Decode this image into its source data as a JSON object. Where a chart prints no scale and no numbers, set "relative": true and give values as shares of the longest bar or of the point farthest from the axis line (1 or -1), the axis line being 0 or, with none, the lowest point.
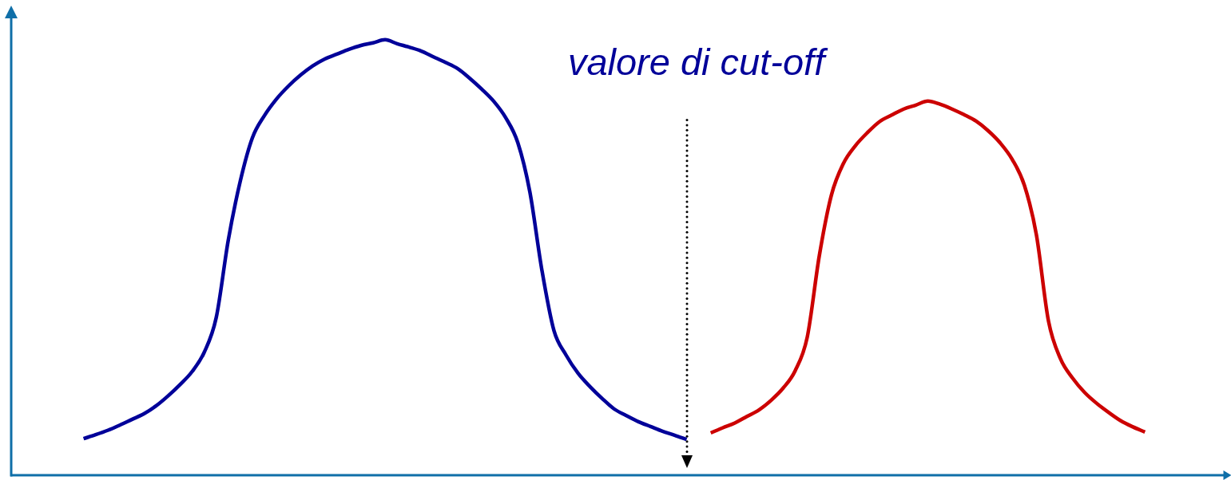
{
  "chart_data": {
    "type": "line",
    "relative": true,
    "categories": [
      null,
      null,
      null,
      null,
      null,
      null,
      null,
      null,
      null,
      null,
      null,
      null,
      null,
      null,
      null,
      null,
      null,
      null,
      null,
      null,
      null,
      null,
      null,
      null,
      null,
      null,
      null,
      null,
      null,
      null,
      null,
      null,
      null,
      null,
      null,
      null,
      null,
      null,
      null,
      null,
      null,
      null,
      null,
      null,
      null,
      null,
      null,
      null,
      null,
      null,
      null,
      null,
      null,
      null,
      null,
      null,
      null,
      null,
      null,
      null,
      null,
      null,
      null,
      null,
      null,
      null,
      null,
      null,
      null,
      null,
      null,
      null,
      null,
      null,
      null,
      null,
      null,
      null,
      null,
      null,
      null,
      null,
      null,
      null,
      null,
      null,
      null,
      null,
      null,
      null,
      null,
      null,
      null,
      null,
      null,
      null,
      null,
      null,
      null,
      null,
      null,
      null
    ],
    "series": [
      {
        "color": "#000099",
        "values": [
          null,
          null,
          null,
          null,
          null,
          null,
          0.084,
          0.093,
          0.103,
          0.115,
          0.128,
          0.141,
          0.159,
          0.182,
          0.208,
          0.238,
          0.282,
          0.362,
          0.54,
          0.676,
          0.775,
          0.826,
          0.864,
          0.894,
          0.919,
          0.94,
          0.956,
          0.967,
          0.978,
          0.987,
          0.993,
          1,
          0.991,
          0.983,
          0.974,
          0.961,
          0.948,
          0.934,
          0.912,
          0.887,
          0.859,
          0.821,
          0.764,
          0.651,
          0.471,
          0.332,
          0.276,
          0.234,
          0.203,
          0.176,
          0.152,
          0.137,
          0.123,
          0.112,
          0.101,
          0.092,
          0.082,
          null,
          null,
          null,
          null,
          null,
          null,
          null,
          null,
          null,
          null,
          null,
          null,
          null,
          null,
          null,
          null,
          null,
          null,
          null,
          null,
          null,
          null,
          null,
          null,
          null,
          null,
          null,
          null,
          null,
          null,
          null,
          null,
          null,
          null,
          null,
          null,
          null,
          null,
          null,
          null,
          null,
          null,
          null,
          null,
          null
        ]
      },
      {
        "color": "#cc0000",
        "values": [
          null,
          null,
          null,
          null,
          null,
          null,
          null,
          null,
          null,
          null,
          null,
          null,
          null,
          null,
          null,
          null,
          null,
          null,
          null,
          null,
          null,
          null,
          null,
          null,
          null,
          null,
          null,
          null,
          null,
          null,
          null,
          null,
          null,
          null,
          null,
          null,
          null,
          null,
          null,
          null,
          null,
          null,
          null,
          null,
          null,
          null,
          null,
          null,
          null,
          null,
          null,
          null,
          null,
          null,
          null,
          null,
          null,
          null,
          0.097,
          0.109,
          0.12,
          0.135,
          0.15,
          0.172,
          0.2,
          0.24,
          0.317,
          0.504,
          0.643,
          0.716,
          0.757,
          0.787,
          0.812,
          0.827,
          0.841,
          0.85,
          0.859,
          0.852,
          0.841,
          0.828,
          0.813,
          0.791,
          0.763,
          0.725,
          0.666,
          0.552,
          0.354,
          0.267,
          0.223,
          0.19,
          0.165,
          0.144,
          0.125,
          0.111,
          0.099,
          null,
          null,
          null,
          null,
          null,
          null,
          null
        ]
      }
    ],
    "annotations": [
      "valore di cut-off"
    ],
    "grid": false,
    "legend": false,
    "marker": "none"
  }
}
